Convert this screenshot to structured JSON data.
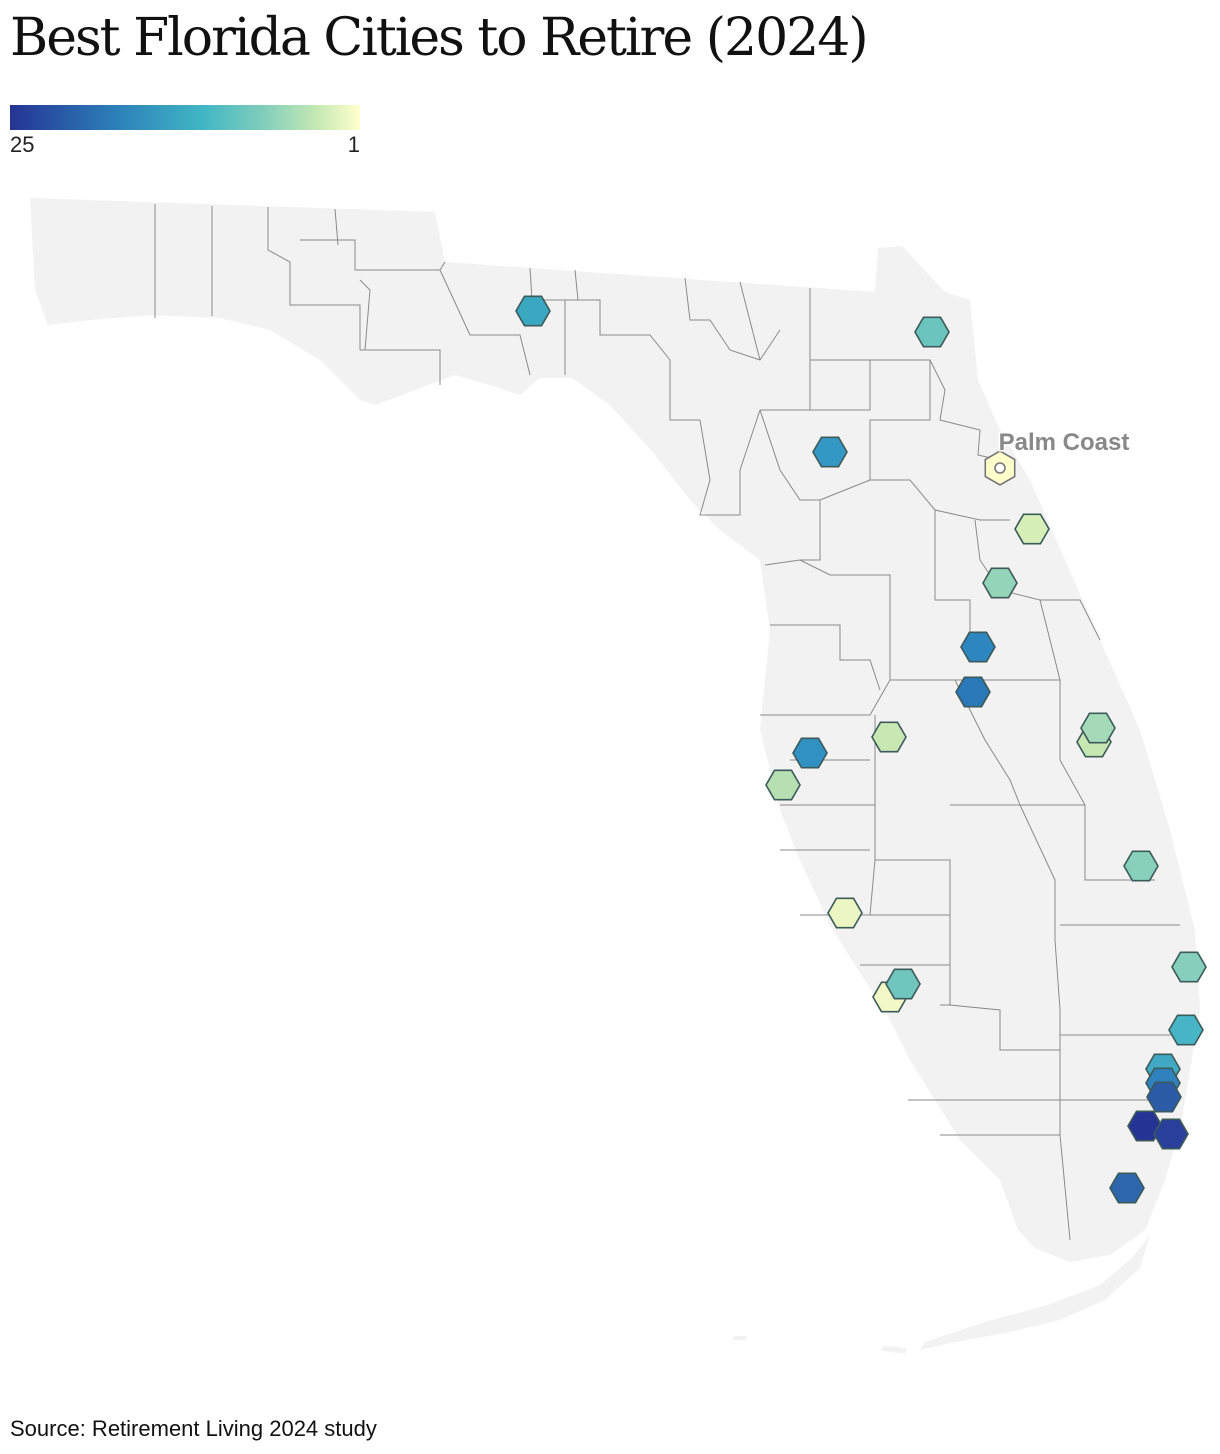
{
  "title": "Best Florida Cities to Retire (2024)",
  "legend": {
    "min_label": "25",
    "max_label": "1",
    "colors": [
      "#253494",
      "#2c7fb8",
      "#41b6c4",
      "#7fcdbb",
      "#c7e9b4",
      "#ffffcc"
    ]
  },
  "highlight_label": "Palm Coast",
  "source": "Source: Retirement Living 2024 study",
  "map": {
    "land_color": "#f2f2f2",
    "border_color": "#8a8a8a",
    "marker_stroke": "#3d5a5a"
  }
}
